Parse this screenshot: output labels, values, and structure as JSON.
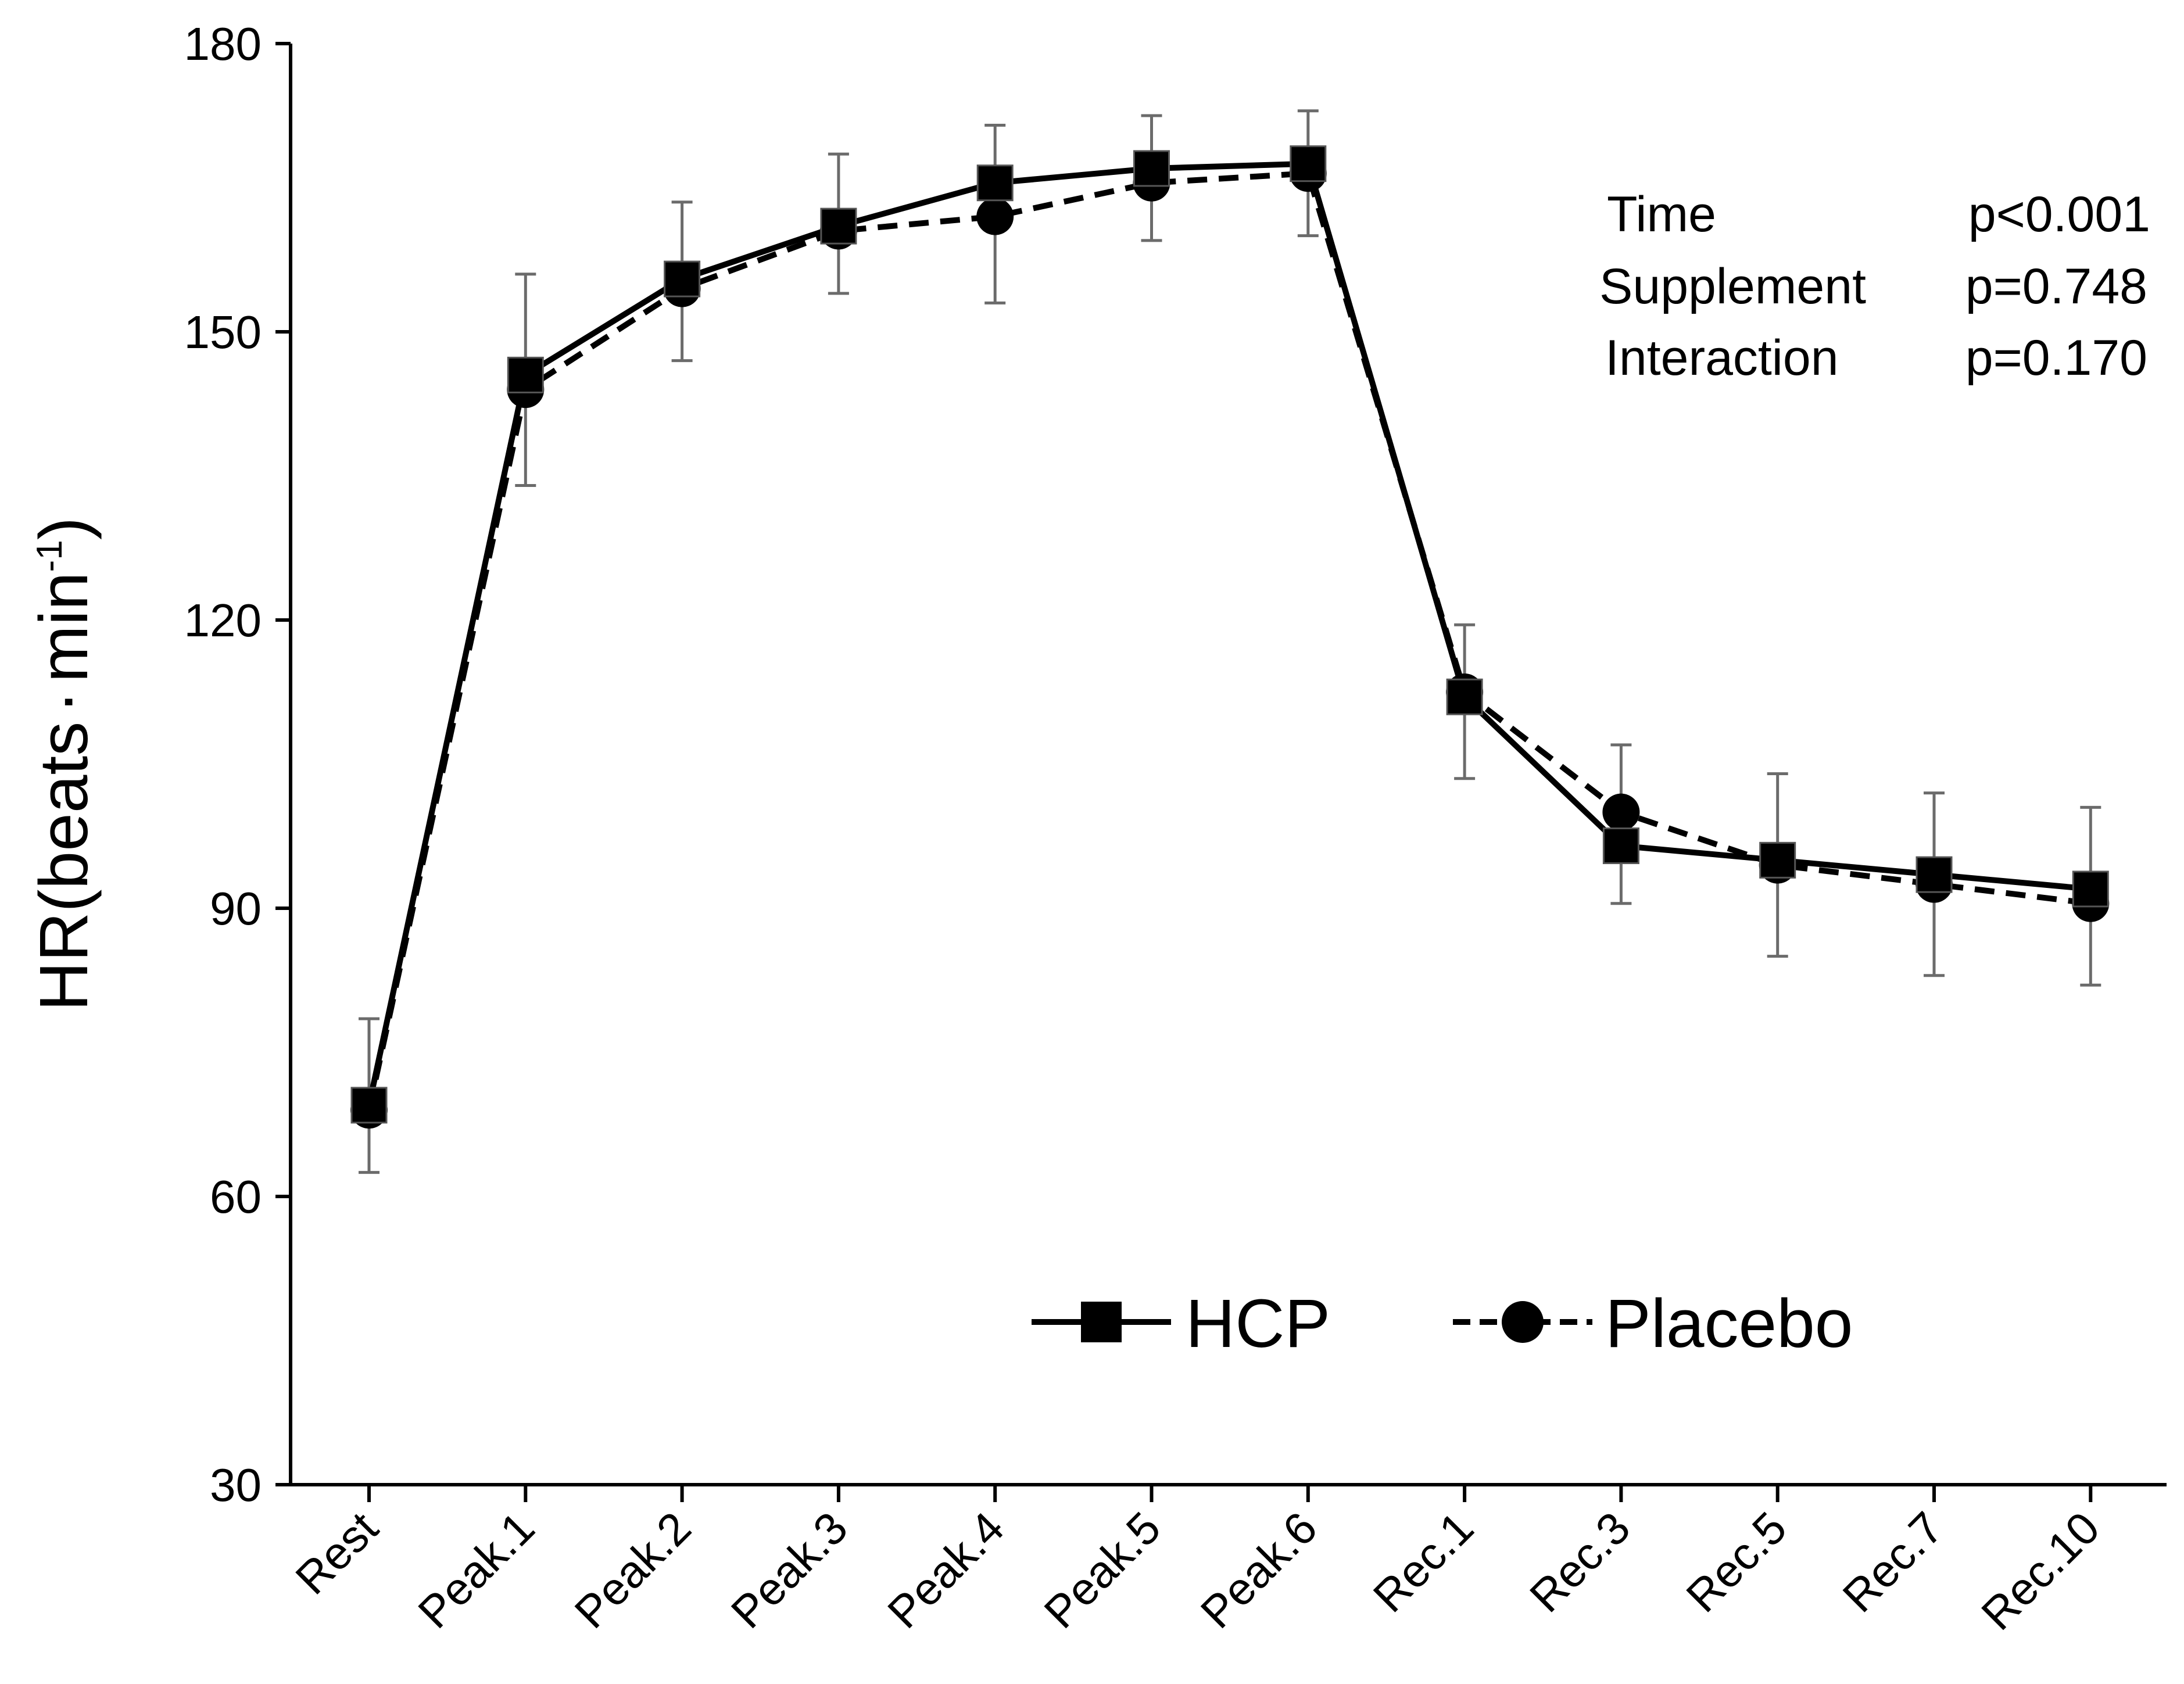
{
  "chart_data": {
    "type": "line",
    "ylabel": "HR(beats·min⁻¹)",
    "ylabel_main": "HR(beats",
    "ylabel_dot": "·",
    "ylabel_min": "min",
    "ylabel_sup": "-1",
    "ylabel_close": ")",
    "xlabel": "",
    "ylim": [
      30,
      180
    ],
    "yticks": [
      30,
      60,
      90,
      120,
      150,
      180
    ],
    "ytick_labels": [
      "30",
      "60",
      "90",
      "120",
      "150",
      "180"
    ],
    "categories": [
      "Rest",
      "Peak.1",
      "Peak.2",
      "Peak.3",
      "Peak.4",
      "Peak.5",
      "Peak.6",
      "Rec.1",
      "Rec.3",
      "Rec.5",
      "Rec.7",
      "Rec.10"
    ],
    "series": [
      {
        "name": "HCP",
        "marker": "square",
        "linestyle": "solid",
        "values": [
          69.5,
          145.5,
          155.5,
          161,
          165.5,
          167,
          167.5,
          112,
          96.5,
          95,
          93.5,
          92
        ],
        "err_high": [
          78.5,
          156,
          163.5,
          168.5,
          171.5,
          172.5,
          173,
          119.5,
          107,
          104,
          102,
          100.5
        ],
        "err_low": [
          62.5,
          134,
          147,
          154,
          153,
          159.5,
          160,
          103.5,
          90.5,
          85,
          83,
          82
        ]
      },
      {
        "name": "Placebo",
        "marker": "circle",
        "linestyle": "dashed",
        "values": [
          69,
          144,
          154.5,
          160.5,
          162,
          165.5,
          166.5,
          112.5,
          100,
          94.5,
          92.5,
          90.5
        ],
        "err_high": [],
        "err_low": []
      }
    ],
    "stats": [
      {
        "label": "Time",
        "value": "p<0.001"
      },
      {
        "label": "Supplement",
        "value": "p=0.748"
      },
      {
        "label": "Interaction",
        "value": "p=0.170"
      }
    ],
    "legend": [
      "HCP",
      "Placebo"
    ],
    "legend_position": "bottom-center"
  }
}
